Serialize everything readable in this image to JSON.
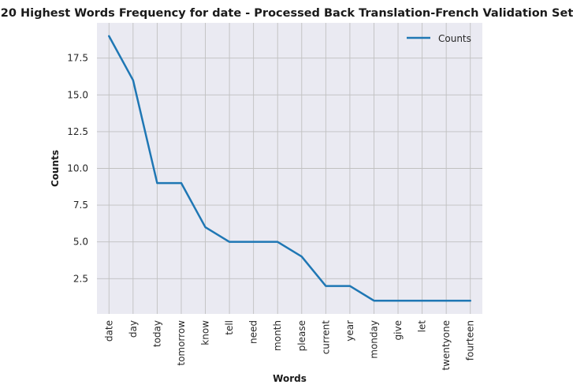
{
  "chart_data": {
    "type": "line",
    "title": "20 Highest Words Frequency for date - Processed Back Translation-French Validation Set",
    "xlabel": "Words",
    "ylabel": "Counts",
    "categories": [
      "date",
      "day",
      "today",
      "tomorrow",
      "know",
      "tell",
      "need",
      "month",
      "please",
      "current",
      "year",
      "monday",
      "give",
      "let",
      "twentyone",
      "fourteen"
    ],
    "series": [
      {
        "name": "Counts",
        "values": [
          19,
          16,
          9,
          9,
          6,
          5,
          5,
          5,
          4,
          2,
          2,
          1,
          1,
          1,
          1,
          1
        ]
      }
    ],
    "yticks": [
      2.5,
      5.0,
      7.5,
      10.0,
      12.5,
      15.0,
      17.5
    ],
    "ytick_labels": [
      "2.5",
      "5.0",
      "7.5",
      "10.0",
      "12.5",
      "15.0",
      "17.5"
    ],
    "ylim": [
      0.1,
      19.9
    ],
    "grid": true,
    "legend": "top-right",
    "colors": {
      "line": "#1f77b4",
      "plot_bg": "#eaeaf2",
      "grid": "#c0c0c0"
    }
  }
}
